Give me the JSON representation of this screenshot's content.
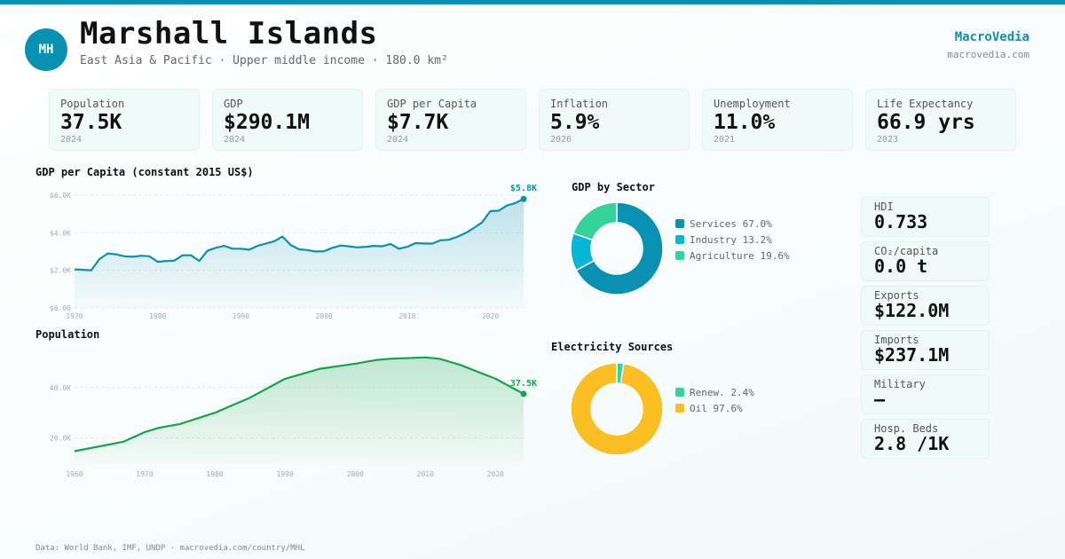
{
  "header": {
    "initials": "MH",
    "title": "Marshall Islands",
    "subtitle": "East Asia & Pacific · Upper middle income · 180.0 km²",
    "brand": "MacroVedia",
    "brand_url": "macrovedia.com"
  },
  "kpis": [
    {
      "label": "Population",
      "value": "37.5K",
      "year": "2024"
    },
    {
      "label": "GDP",
      "value": "$290.1M",
      "year": "2024"
    },
    {
      "label": "GDP per Capita",
      "value": "$7.7K",
      "year": "2024"
    },
    {
      "label": "Inflation",
      "value": "5.9%",
      "year": "2026"
    },
    {
      "label": "Unemployment",
      "value": "11.0%",
      "year": "2021"
    },
    {
      "label": "Life Expectancy",
      "value": "66.9 yrs",
      "year": "2023"
    }
  ],
  "side_stats": [
    {
      "label": "HDI",
      "value": "0.733"
    },
    {
      "label": "CO₂/capita",
      "value": "0.0 t"
    },
    {
      "label": "Exports",
      "value": "$122.0M"
    },
    {
      "label": "Imports",
      "value": "$237.1M"
    },
    {
      "label": "Military",
      "value": "—"
    },
    {
      "label": "Hosp. Beds",
      "value": "2.8 /1K"
    }
  ],
  "footer": "Data: World Bank, IMF, UNDP · macrovedia.com/country/MHL",
  "colors": {
    "accent": "#0891b2",
    "population": "#16a34a",
    "services": "#0891b2",
    "industry": "#06b6d4",
    "agriculture": "#34d399",
    "renew": "#34d399",
    "oil": "#fbbf24"
  },
  "chart_data": [
    {
      "type": "area",
      "title": "GDP per Capita (constant 2015 US$)",
      "ylim": [
        0,
        6000
      ],
      "yticks": [
        "$0.00",
        "$2.0K",
        "$4.0K",
        "$6.0K"
      ],
      "ytick_values": [
        0,
        2000,
        4000,
        6000
      ],
      "xticks": [
        "1970",
        "1980",
        "1990",
        "2000",
        "2010",
        "2020"
      ],
      "end_label": "$5.8K",
      "x": [
        1970,
        1971,
        1972,
        1973,
        1974,
        1975,
        1976,
        1977,
        1978,
        1979,
        1980,
        1981,
        1982,
        1983,
        1984,
        1985,
        1986,
        1987,
        1988,
        1989,
        1990,
        1991,
        1992,
        1993,
        1994,
        1995,
        1996,
        1997,
        1998,
        1999,
        2000,
        2001,
        2002,
        2003,
        2004,
        2005,
        2006,
        2007,
        2008,
        2009,
        2010,
        2011,
        2012,
        2013,
        2014,
        2015,
        2016,
        2017,
        2018,
        2019,
        2020,
        2021,
        2022,
        2023,
        2024
      ],
      "y": [
        2050,
        2030,
        2000,
        2600,
        2900,
        2850,
        2750,
        2720,
        2780,
        2750,
        2450,
        2500,
        2520,
        2800,
        2800,
        2500,
        3050,
        3200,
        3300,
        3150,
        3150,
        3100,
        3300,
        3420,
        3550,
        3800,
        3350,
        3120,
        3080,
        3000,
        3020,
        3200,
        3320,
        3280,
        3220,
        3250,
        3300,
        3280,
        3400,
        3150,
        3250,
        3450,
        3430,
        3420,
        3600,
        3630,
        3780,
        3980,
        4250,
        4550,
        5150,
        5180,
        5450,
        5580,
        5800
      ]
    },
    {
      "type": "area",
      "title": "Population",
      "ylim": [
        9600,
        53000
      ],
      "yticks": [
        "20.0K",
        "40.0K"
      ],
      "ytick_values": [
        20000,
        40000
      ],
      "xticks": [
        "1960",
        "1970",
        "1980",
        "1990",
        "2000",
        "2010",
        "2020"
      ],
      "end_label": "37.5K",
      "x": [
        1960,
        1967,
        1970,
        1972,
        1975,
        1980,
        1985,
        1990,
        1995,
        2000,
        2003,
        2005,
        2010,
        2012,
        2015,
        2020,
        2024
      ],
      "y": [
        14700,
        18500,
        22300,
        24000,
        25500,
        30000,
        36000,
        43500,
        47500,
        49500,
        51000,
        51500,
        52000,
        51500,
        49000,
        43500,
        37500
      ]
    },
    {
      "type": "pie",
      "title": "GDP by Sector",
      "labels": [
        "Services 67.0%",
        "Industry 13.2%",
        "Agriculture 19.6%"
      ],
      "values": [
        67.0,
        13.2,
        19.6
      ]
    },
    {
      "type": "pie",
      "title": "Electricity Sources",
      "labels": [
        "Renew. 2.4%",
        "Oil 97.6%"
      ],
      "values": [
        2.4,
        97.6
      ]
    }
  ]
}
